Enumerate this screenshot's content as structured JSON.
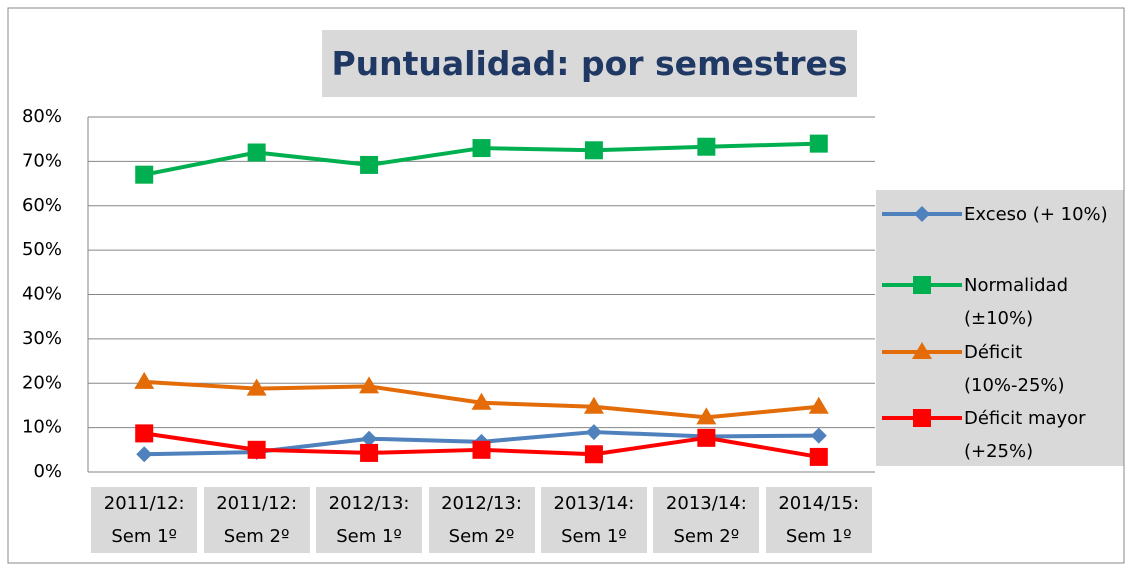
{
  "chart_data": {
    "type": "line",
    "title": "Puntualidad: por semestres",
    "categories": [
      "2011/12: Sem 1º",
      "2011/12: Sem 2º",
      "2012/13: Sem 1º",
      "2012/13: Sem 2º",
      "2013/14: Sem 1º",
      "2013/14: Sem 2º",
      "2014/15: Sem 1º"
    ],
    "series": [
      {
        "name": "Exceso (+ 10%)",
        "color": "#4f81bd",
        "marker": "diamond",
        "values": [
          4,
          4.5,
          7.5,
          6.8,
          9,
          8,
          8.2
        ]
      },
      {
        "name": "Normalidad (±10%)",
        "color": "#00b050",
        "marker": "square",
        "values": [
          67,
          72,
          69.2,
          73,
          72.5,
          73.3,
          74
        ]
      },
      {
        "name": "Déficit (10%-25%)",
        "color": "#e36c09",
        "marker": "triangle",
        "values": [
          20.3,
          18.8,
          19.3,
          15.6,
          14.7,
          12.3,
          14.7
        ]
      },
      {
        "name": "Déficit mayor (+25%)",
        "color": "#ff0000",
        "marker": "square",
        "values": [
          8.7,
          5,
          4.3,
          5,
          4,
          7.7,
          3.4
        ]
      }
    ],
    "ylim": [
      0,
      80
    ],
    "yticks": [
      {
        "value": 0,
        "label": "0%"
      },
      {
        "value": 10,
        "label": "10%"
      },
      {
        "value": 20,
        "label": "20%"
      },
      {
        "value": 30,
        "label": "30%"
      },
      {
        "value": 40,
        "label": "40%"
      },
      {
        "value": 50,
        "label": "50%"
      },
      {
        "value": 60,
        "label": "60%"
      },
      {
        "value": 70,
        "label": "70%"
      },
      {
        "value": 80,
        "label": "80%"
      }
    ],
    "grid": true,
    "legend": "right"
  }
}
